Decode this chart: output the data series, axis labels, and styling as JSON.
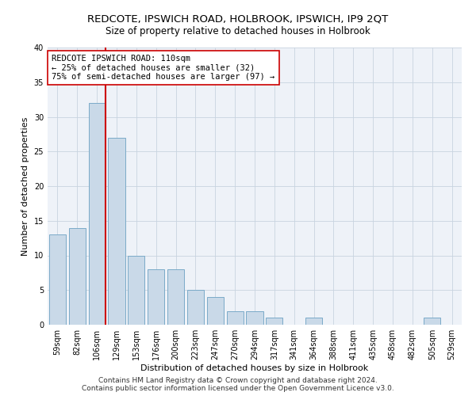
{
  "title": "REDCOTE, IPSWICH ROAD, HOLBROOK, IPSWICH, IP9 2QT",
  "subtitle": "Size of property relative to detached houses in Holbrook",
  "xlabel": "Distribution of detached houses by size in Holbrook",
  "ylabel": "Number of detached properties",
  "categories": [
    "59sqm",
    "82sqm",
    "106sqm",
    "129sqm",
    "153sqm",
    "176sqm",
    "200sqm",
    "223sqm",
    "247sqm",
    "270sqm",
    "294sqm",
    "317sqm",
    "341sqm",
    "364sqm",
    "388sqm",
    "411sqm",
    "435sqm",
    "458sqm",
    "482sqm",
    "505sqm",
    "529sqm"
  ],
  "values": [
    13,
    14,
    32,
    27,
    10,
    8,
    8,
    5,
    4,
    2,
    2,
    1,
    0,
    1,
    0,
    0,
    0,
    0,
    0,
    1,
    0
  ],
  "bar_color": "#c9d9e8",
  "bar_edge_color": "#7aaac8",
  "redline_x": 2.42,
  "redline_color": "#cc0000",
  "annotation_text": "REDCOTE IPSWICH ROAD: 110sqm\n← 25% of detached houses are smaller (32)\n75% of semi-detached houses are larger (97) →",
  "annotation_box_color": "#ffffff",
  "annotation_box_edge_color": "#cc0000",
  "ylim": [
    0,
    40
  ],
  "yticks": [
    0,
    5,
    10,
    15,
    20,
    25,
    30,
    35,
    40
  ],
  "grid_color": "#c8d4e0",
  "bg_color": "#eef2f8",
  "footer_line1": "Contains HM Land Registry data © Crown copyright and database right 2024.",
  "footer_line2": "Contains public sector information licensed under the Open Government Licence v3.0.",
  "title_fontsize": 9.5,
  "subtitle_fontsize": 8.5,
  "axis_label_fontsize": 8,
  "tick_fontsize": 7,
  "annotation_fontsize": 7.5,
  "footer_fontsize": 6.5
}
